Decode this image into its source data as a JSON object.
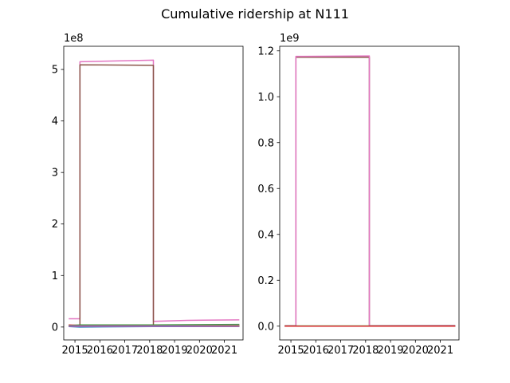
{
  "title": "Cumulative ridership at N111",
  "chart_data": [
    {
      "type": "line",
      "title": "",
      "xlabel": "",
      "ylabel": "",
      "offset_label": "1e8",
      "xlim": [
        2014.55,
        2021.75
      ],
      "ylim": [
        -0.25,
        5.45
      ],
      "xticks": [
        2015,
        2016,
        2017,
        2018,
        2019,
        2020,
        2021
      ],
      "xtick_labels": [
        "2015",
        "2016",
        "2017",
        "2018",
        "2019",
        "2020",
        "2021"
      ],
      "yticks": [
        0,
        1,
        2,
        3,
        4,
        5
      ],
      "ytick_labels": [
        "0",
        "1",
        "2",
        "3",
        "4",
        "5"
      ],
      "grid": false,
      "series": [
        {
          "color": "#e377c2",
          "x": [
            2014.75,
            2015.2,
            2015.2,
            2018.15,
            2018.15,
            2019.5,
            2021.6
          ],
          "y": [
            0.16,
            0.16,
            5.15,
            5.18,
            0.11,
            0.13,
            0.14
          ]
        },
        {
          "color": "#8c564b",
          "x": [
            2014.75,
            2015.2,
            2015.2,
            2018.15,
            2018.15,
            2021.6
          ],
          "y": [
            0.02,
            0.02,
            5.09,
            5.08,
            0.01,
            0.01
          ]
        },
        {
          "color": "#2ca02c",
          "x": [
            2014.75,
            2015.2,
            2018.15,
            2021.6
          ],
          "y": [
            0.03,
            0.04,
            0.04,
            0.05
          ]
        },
        {
          "color": "#d62728",
          "x": [
            2014.75,
            2015.2,
            2018.15,
            2021.6
          ],
          "y": [
            0.04,
            0.03,
            0.03,
            0.03
          ]
        },
        {
          "color": "#1f77b4",
          "x": [
            2014.75,
            2015.2,
            2018.15,
            2021.6
          ],
          "y": [
            0.01,
            0.0,
            0.01,
            0.02
          ]
        },
        {
          "color": "#ff7f0e",
          "x": [
            2014.75,
            2015.2,
            2018.15,
            2021.6
          ],
          "y": [
            0.02,
            0.02,
            0.02,
            0.02
          ]
        },
        {
          "color": "#7f7f7f",
          "x": [
            2014.75,
            2015.2,
            2018.15,
            2021.6
          ],
          "y": [
            0.03,
            0.03,
            0.03,
            0.04
          ]
        },
        {
          "color": "#9467bd",
          "x": [
            2014.75,
            2015.2,
            2018.15,
            2021.6
          ],
          "y": [
            0.01,
            0.01,
            0.01,
            0.01
          ]
        }
      ]
    },
    {
      "type": "line",
      "title": "",
      "xlabel": "",
      "ylabel": "",
      "offset_label": "1e9",
      "xlim": [
        2014.55,
        2021.75
      ],
      "ylim": [
        -0.06,
        1.22
      ],
      "xticks": [
        2015,
        2016,
        2017,
        2018,
        2019,
        2020,
        2021
      ],
      "xtick_labels": [
        "2015",
        "2016",
        "2017",
        "2018",
        "2019",
        "2020",
        "2021"
      ],
      "yticks": [
        0.0,
        0.2,
        0.4,
        0.6,
        0.8,
        1.0,
        1.2
      ],
      "ytick_labels": [
        "0.0",
        "0.2",
        "0.4",
        "0.6",
        "0.8",
        "1.0",
        "1.2"
      ],
      "grid": false,
      "series": [
        {
          "color": "#8c564b",
          "x": [
            2014.75,
            2015.2,
            2015.2,
            2018.15,
            2018.15,
            2021.6
          ],
          "y": [
            0.001,
            0.001,
            1.172,
            1.172,
            0.001,
            0.001
          ]
        },
        {
          "color": "#e377c2",
          "x": [
            2014.75,
            2015.2,
            2015.2,
            2018.15,
            2018.15,
            2021.6
          ],
          "y": [
            0.002,
            0.002,
            1.176,
            1.178,
            0.002,
            0.003
          ]
        },
        {
          "color": "#1f77b4",
          "x": [
            2014.75,
            2015.2,
            2018.15,
            2021.6
          ],
          "y": [
            0.0,
            0.0,
            0.0,
            0.0
          ]
        },
        {
          "color": "#2ca02c",
          "x": [
            2014.75,
            2015.2,
            2018.15,
            2021.6
          ],
          "y": [
            0.001,
            0.001,
            0.001,
            0.001
          ]
        },
        {
          "color": "#d62728",
          "x": [
            2014.75,
            2015.2,
            2018.15,
            2021.6
          ],
          "y": [
            0.0,
            0.0,
            0.0,
            0.0
          ]
        }
      ]
    }
  ]
}
